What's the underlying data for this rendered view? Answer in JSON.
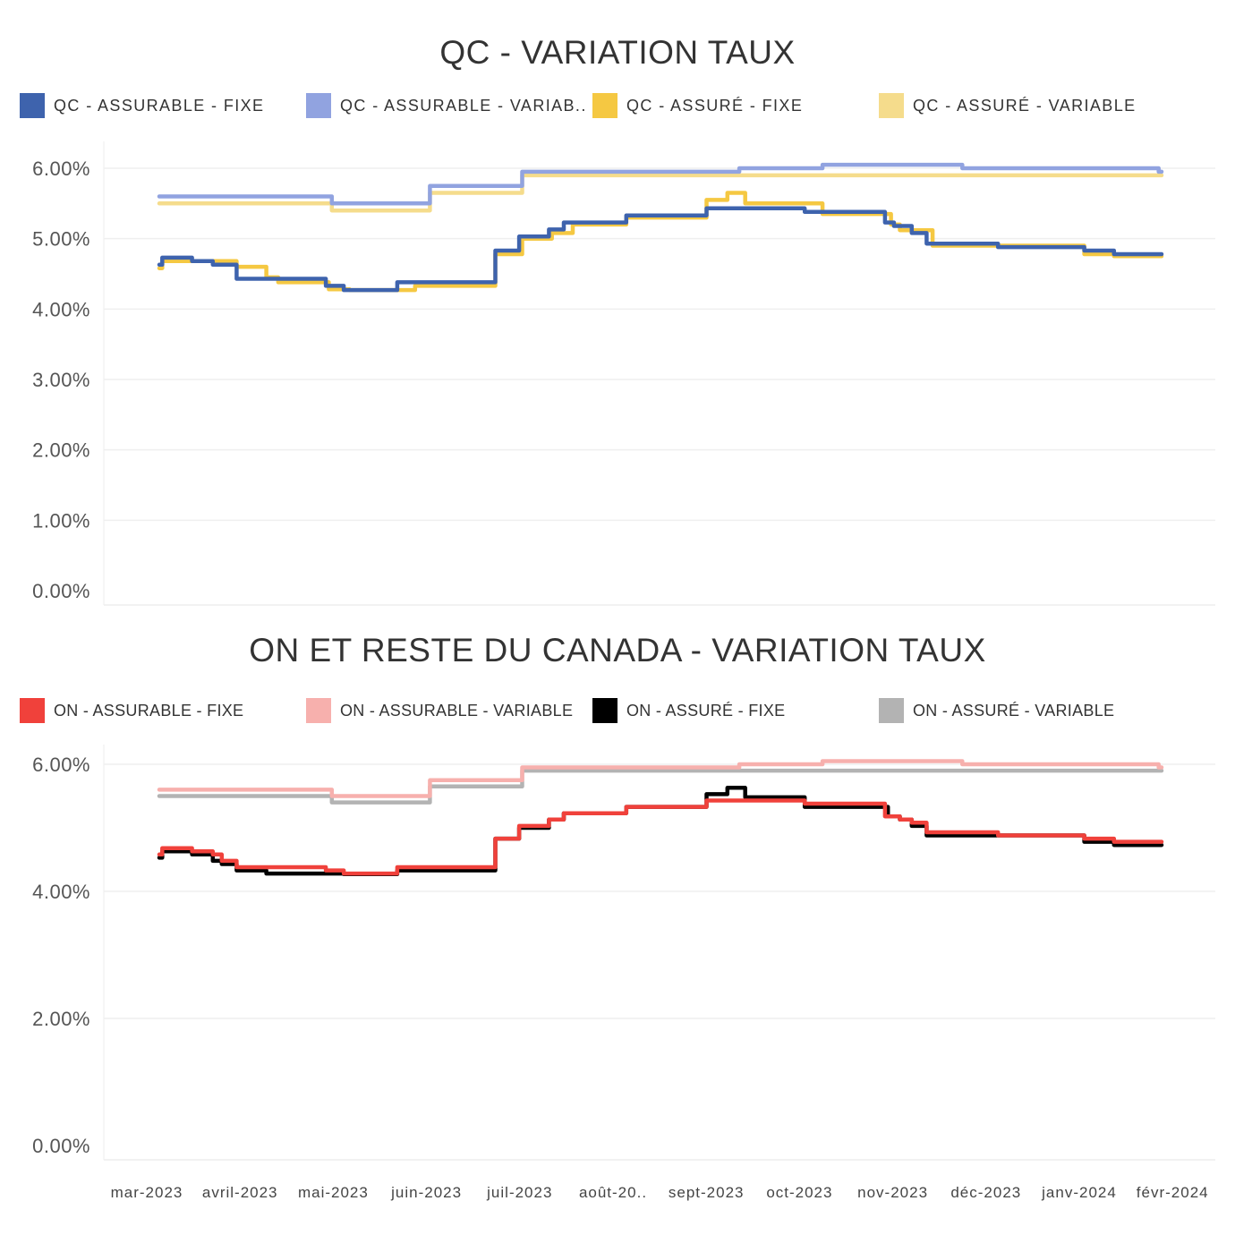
{
  "chart_data": [
    {
      "type": "line",
      "title": "QC - VARIATION TAUX",
      "legend_position": "top",
      "ylim": [
        0,
        6.2
      ],
      "yticks": [
        0,
        1,
        2,
        3,
        4,
        5,
        6
      ],
      "ytick_labels": [
        "0.00%",
        "1.00%",
        "2.00%",
        "3.00%",
        "4.00%",
        "5.00%",
        "6.00%"
      ],
      "grid": true,
      "series": [
        {
          "name": "QC - ASSURÉ - VARIABLE",
          "color": "#f5dc8c",
          "steps": [
            [
              "2023-03-01",
              5.5
            ],
            [
              "2023-04-28",
              5.4
            ],
            [
              "2023-05-31",
              5.65
            ],
            [
              "2023-07-01",
              5.9
            ],
            [
              "2024-02-01",
              5.9
            ]
          ]
        },
        {
          "name": "QC - ASSURABLE - VARIAB..",
          "color": "#91a3e0",
          "steps": [
            [
              "2023-03-01",
              5.6
            ],
            [
              "2023-04-28",
              5.5
            ],
            [
              "2023-05-31",
              5.75
            ],
            [
              "2023-07-01",
              5.95
            ],
            [
              "2023-09-12",
              6.0
            ],
            [
              "2023-10-10",
              6.05
            ],
            [
              "2023-11-26",
              6.0
            ],
            [
              "2024-01-31",
              5.95
            ],
            [
              "2024-02-01",
              5.95
            ]
          ]
        },
        {
          "name": "QC - ASSURÉ - FIXE",
          "color": "#f5c842",
          "steps": [
            [
              "2023-03-01",
              4.58
            ],
            [
              "2023-03-02",
              4.68
            ],
            [
              "2023-03-19",
              4.68
            ],
            [
              "2023-03-27",
              4.6
            ],
            [
              "2023-04-06",
              4.45
            ],
            [
              "2023-04-10",
              4.38
            ],
            [
              "2023-04-27",
              4.28
            ],
            [
              "2023-05-04",
              4.27
            ],
            [
              "2023-05-26",
              4.33
            ],
            [
              "2023-06-22",
              4.78
            ],
            [
              "2023-07-01",
              5.0
            ],
            [
              "2023-07-11",
              5.08
            ],
            [
              "2023-07-18",
              5.2
            ],
            [
              "2023-08-05",
              5.3
            ],
            [
              "2023-09-01",
              5.55
            ],
            [
              "2023-09-08",
              5.65
            ],
            [
              "2023-09-14",
              5.5
            ],
            [
              "2023-10-10",
              5.35
            ],
            [
              "2023-11-02",
              5.2
            ],
            [
              "2023-11-05",
              5.12
            ],
            [
              "2023-11-16",
              4.9
            ],
            [
              "2023-12-07",
              4.9
            ],
            [
              "2024-01-06",
              4.78
            ],
            [
              "2024-01-16",
              4.75
            ],
            [
              "2024-02-01",
              4.75
            ]
          ]
        },
        {
          "name": "QC - ASSURABLE - FIXE",
          "color": "#3e63ad",
          "steps": [
            [
              "2023-03-01",
              4.63
            ],
            [
              "2023-03-02",
              4.73
            ],
            [
              "2023-03-12",
              4.68
            ],
            [
              "2023-03-19",
              4.63
            ],
            [
              "2023-03-27",
              4.43
            ],
            [
              "2023-04-26",
              4.33
            ],
            [
              "2023-05-02",
              4.27
            ],
            [
              "2023-05-20",
              4.38
            ],
            [
              "2023-06-22",
              4.83
            ],
            [
              "2023-06-30",
              5.03
            ],
            [
              "2023-07-10",
              5.13
            ],
            [
              "2023-07-15",
              5.23
            ],
            [
              "2023-08-05",
              5.33
            ],
            [
              "2023-09-01",
              5.43
            ],
            [
              "2023-10-04",
              5.38
            ],
            [
              "2023-10-31",
              5.23
            ],
            [
              "2023-11-03",
              5.18
            ],
            [
              "2023-11-09",
              5.08
            ],
            [
              "2023-11-14",
              4.93
            ],
            [
              "2023-12-08",
              4.88
            ],
            [
              "2024-01-06",
              4.83
            ],
            [
              "2024-01-16",
              4.78
            ],
            [
              "2024-02-01",
              4.78
            ]
          ]
        }
      ]
    },
    {
      "type": "line",
      "title": "ON ET RESTE DU CANADA - VARIATION TAUX",
      "legend_position": "top",
      "ylim": [
        0,
        6.2
      ],
      "yticks": [
        0,
        2,
        4,
        6
      ],
      "ytick_labels": [
        "0.00%",
        "2.00%",
        "4.00%",
        "6.00%"
      ],
      "grid": true,
      "x_tick_labels": [
        "mar-2023",
        "avril-2023",
        "mai-2023",
        "juin-2023",
        "juil-2023",
        "août-20..",
        "sept-2023",
        "oct-2023",
        "nov-2023",
        "déc-2023",
        "janv-2024",
        "févr-2024"
      ],
      "series": [
        {
          "name": "ON - ASSURÉ - VARIABLE",
          "color": "#b3b3b3",
          "steps": [
            [
              "2023-03-01",
              5.5
            ],
            [
              "2023-04-28",
              5.4
            ],
            [
              "2023-05-31",
              5.65
            ],
            [
              "2023-07-01",
              5.9
            ],
            [
              "2024-02-01",
              5.9
            ]
          ]
        },
        {
          "name": "ON - ASSURABLE - VARIABLE",
          "color": "#f7b0ad",
          "steps": [
            [
              "2023-03-01",
              5.6
            ],
            [
              "2023-04-28",
              5.5
            ],
            [
              "2023-05-31",
              5.75
            ],
            [
              "2023-07-01",
              5.95
            ],
            [
              "2023-09-12",
              6.0
            ],
            [
              "2023-10-10",
              6.05
            ],
            [
              "2023-11-26",
              6.0
            ],
            [
              "2024-01-31",
              5.95
            ],
            [
              "2024-02-01",
              5.95
            ]
          ]
        },
        {
          "name": "ON - ASSURÉ - FIXE",
          "color": "#000000",
          "steps": [
            [
              "2023-03-01",
              4.53
            ],
            [
              "2023-03-02",
              4.63
            ],
            [
              "2023-03-12",
              4.58
            ],
            [
              "2023-03-19",
              4.48
            ],
            [
              "2023-03-22",
              4.43
            ],
            [
              "2023-03-27",
              4.33
            ],
            [
              "2023-04-06",
              4.28
            ],
            [
              "2023-05-02",
              4.27
            ],
            [
              "2023-05-20",
              4.33
            ],
            [
              "2023-06-22",
              4.83
            ],
            [
              "2023-06-30",
              5.0
            ],
            [
              "2023-07-10",
              5.13
            ],
            [
              "2023-07-15",
              5.23
            ],
            [
              "2023-08-05",
              5.33
            ],
            [
              "2023-09-01",
              5.53
            ],
            [
              "2023-09-08",
              5.63
            ],
            [
              "2023-09-14",
              5.48
            ],
            [
              "2023-10-04",
              5.33
            ],
            [
              "2023-11-01",
              5.18
            ],
            [
              "2023-11-05",
              5.13
            ],
            [
              "2023-11-09",
              5.03
            ],
            [
              "2023-11-14",
              4.88
            ],
            [
              "2024-01-06",
              4.78
            ],
            [
              "2024-01-16",
              4.73
            ],
            [
              "2024-02-01",
              4.73
            ]
          ]
        },
        {
          "name": "ON - ASSURABLE - FIXE",
          "color": "#f0413b",
          "steps": [
            [
              "2023-03-01",
              4.58
            ],
            [
              "2023-03-02",
              4.68
            ],
            [
              "2023-03-12",
              4.63
            ],
            [
              "2023-03-19",
              4.58
            ],
            [
              "2023-03-22",
              4.48
            ],
            [
              "2023-03-27",
              4.38
            ],
            [
              "2023-04-26",
              4.33
            ],
            [
              "2023-05-02",
              4.28
            ],
            [
              "2023-05-20",
              4.38
            ],
            [
              "2023-06-22",
              4.83
            ],
            [
              "2023-06-30",
              5.03
            ],
            [
              "2023-07-10",
              5.13
            ],
            [
              "2023-07-15",
              5.23
            ],
            [
              "2023-08-05",
              5.33
            ],
            [
              "2023-09-01",
              5.43
            ],
            [
              "2023-10-04",
              5.38
            ],
            [
              "2023-10-31",
              5.18
            ],
            [
              "2023-11-05",
              5.13
            ],
            [
              "2023-11-09",
              5.08
            ],
            [
              "2023-11-14",
              4.93
            ],
            [
              "2023-12-08",
              4.88
            ],
            [
              "2024-01-06",
              4.83
            ],
            [
              "2024-01-16",
              4.78
            ],
            [
              "2024-02-01",
              4.78
            ]
          ]
        }
      ]
    }
  ],
  "legends": {
    "qc": [
      {
        "label": "QC - ASSURABLE - FIXE",
        "color": "#3e63ad"
      },
      {
        "label": "QC - ASSURABLE - VARIAB..",
        "color": "#91a3e0"
      },
      {
        "label": "QC - ASSURÉ - FIXE",
        "color": "#f5c842"
      },
      {
        "label": "QC - ASSURÉ - VARIABLE",
        "color": "#f5dc8c"
      }
    ],
    "on": [
      {
        "label": "ON - ASSURABLE - FIXE",
        "color": "#f0413b"
      },
      {
        "label": "ON - ASSURABLE - VARIABLE",
        "color": "#f7b0ad"
      },
      {
        "label": "ON - ASSURÉ - FIXE",
        "color": "#000000"
      },
      {
        "label": "ON - ASSURÉ - VARIABLE",
        "color": "#b3b3b3"
      }
    ]
  }
}
